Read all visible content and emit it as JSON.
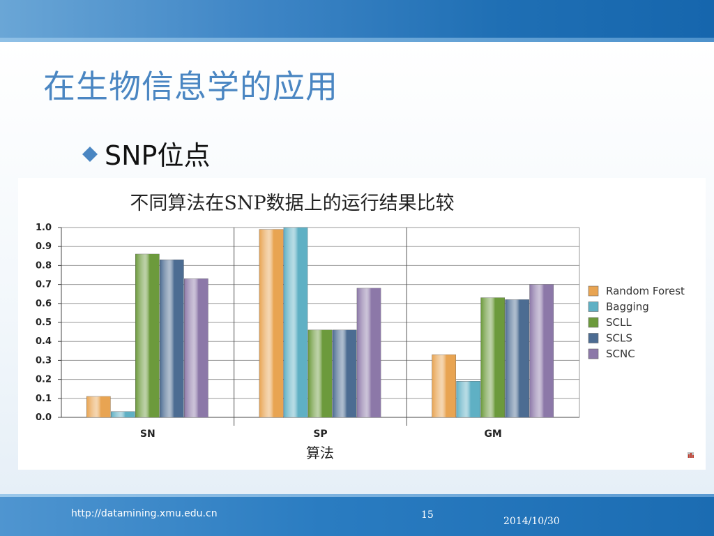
{
  "slide": {
    "title": "在生物信息学的应用",
    "bullet": "SNP位点"
  },
  "footer": {
    "url": "http://datamining.xmu.edu.cn",
    "page_number": "15",
    "date": "2014/10/30"
  },
  "colors": {
    "title": "#4a86c2",
    "bullet_diamond": "#4a86c2",
    "band": "#2a7cc1"
  },
  "icons": {
    "bullet": "diamond-bullet-icon",
    "chart_corner": "small-bar-chart-icon"
  },
  "chart_data": {
    "type": "bar",
    "title": "不同算法在SNP数据上的运行结果比较",
    "xlabel": "算法",
    "ylabel": "",
    "categories": [
      "SN",
      "SP",
      "GM"
    ],
    "ylim": [
      0,
      1.0
    ],
    "yticks": [
      "0.0",
      "0.1",
      "0.2",
      "0.3",
      "0.4",
      "0.5",
      "0.6",
      "0.7",
      "0.8",
      "0.9",
      "1.0"
    ],
    "grid": true,
    "legend_position": "right",
    "series": [
      {
        "name": "Random Forest",
        "color": "#e8a452",
        "values": [
          0.11,
          0.99,
          0.33
        ]
      },
      {
        "name": "Bagging",
        "color": "#5fb0c4",
        "values": [
          0.03,
          1.0,
          0.19
        ]
      },
      {
        "name": "SCLL",
        "color": "#6c9a3c",
        "values": [
          0.86,
          0.46,
          0.63
        ]
      },
      {
        "name": "SCLS",
        "color": "#4c6c92",
        "values": [
          0.83,
          0.46,
          0.62
        ]
      },
      {
        "name": "SCNC",
        "color": "#8c78a8",
        "values": [
          0.73,
          0.68,
          0.7
        ]
      }
    ]
  }
}
